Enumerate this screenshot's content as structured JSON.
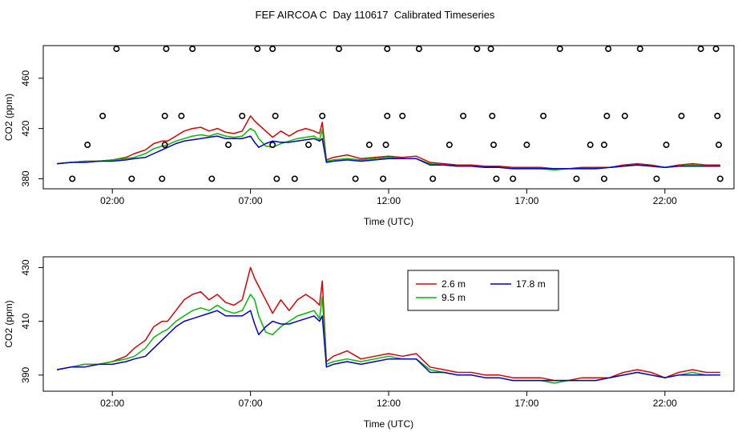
{
  "title": "FEF AIRCOA C  Day 110617  Calibrated Timeseries",
  "colors": {
    "s26": "#dd0000",
    "s95": "#00bb00",
    "s178": "#0000cc",
    "axis": "#000000"
  },
  "chart_data": [
    {
      "type": "scatter",
      "title": "",
      "xlabel": "Time (UTC)",
      "ylabel": "CO2 (ppm)",
      "xlim": [
        -0.5,
        24.5
      ],
      "ylim": [
        372,
        486
      ],
      "xticks": [
        {
          "v": 2,
          "label": "02:00"
        },
        {
          "v": 7,
          "label": "07:00"
        },
        {
          "v": 12,
          "label": "12:00"
        },
        {
          "v": 17,
          "label": "17:00"
        },
        {
          "v": 22,
          "label": "22:00"
        }
      ],
      "yticks": [
        {
          "v": 380,
          "label": "380"
        },
        {
          "v": 420,
          "label": "420"
        },
        {
          "v": 460,
          "label": "460"
        }
      ],
      "circles": [
        [
          0.55,
          380
        ],
        [
          1.1,
          407
        ],
        [
          1.65,
          430
        ],
        [
          2.15,
          489
        ],
        [
          2.7,
          380
        ],
        [
          3.8,
          380
        ],
        [
          3.9,
          430
        ],
        [
          3.95,
          489
        ],
        [
          3.9,
          407
        ],
        [
          4.5,
          430
        ],
        [
          4.9,
          489
        ],
        [
          5.6,
          380
        ],
        [
          6.2,
          407
        ],
        [
          6.7,
          430
        ],
        [
          7.25,
          489
        ],
        [
          7.8,
          489
        ],
        [
          7.9,
          430
        ],
        [
          7.8,
          407
        ],
        [
          7.95,
          380
        ],
        [
          8.6,
          380
        ],
        [
          9.1,
          407
        ],
        [
          9.6,
          430
        ],
        [
          10.2,
          489
        ],
        [
          10.8,
          380
        ],
        [
          11.3,
          407
        ],
        [
          11.8,
          380
        ],
        [
          11.9,
          407
        ],
        [
          11.95,
          430
        ],
        [
          11.95,
          489
        ],
        [
          12.5,
          430
        ],
        [
          13.1,
          489
        ],
        [
          13.6,
          380
        ],
        [
          14.2,
          407
        ],
        [
          14.7,
          430
        ],
        [
          15.2,
          489
        ],
        [
          15.7,
          489
        ],
        [
          15.75,
          430
        ],
        [
          15.8,
          407
        ],
        [
          15.9,
          380
        ],
        [
          16.5,
          380
        ],
        [
          17.0,
          407
        ],
        [
          17.6,
          430
        ],
        [
          18.2,
          489
        ],
        [
          18.8,
          380
        ],
        [
          19.3,
          407
        ],
        [
          19.8,
          380
        ],
        [
          19.8,
          407
        ],
        [
          19.9,
          430
        ],
        [
          19.95,
          489
        ],
        [
          20.55,
          430
        ],
        [
          21.1,
          489
        ],
        [
          21.7,
          380
        ],
        [
          22.05,
          407
        ],
        [
          22.6,
          430
        ],
        [
          23.3,
          489
        ],
        [
          23.85,
          489
        ],
        [
          23.9,
          430
        ],
        [
          23.95,
          407
        ],
        [
          24.0,
          380
        ]
      ],
      "series": [
        {
          "name": "2.6 m",
          "x": [
            0,
            0.5,
            1,
            1.5,
            2,
            2.5,
            2.8,
            3.2,
            3.5,
            3.8,
            4,
            4.3,
            4.6,
            4.9,
            5.2,
            5.5,
            5.8,
            6.1,
            6.4,
            6.7,
            7,
            7.15,
            7.3,
            7.55,
            7.8,
            8.1,
            8.4,
            8.7,
            9,
            9.3,
            9.5,
            9.6,
            9.75,
            10,
            10.5,
            11,
            11.5,
            12,
            12.5,
            13,
            13.5,
            14,
            14.5,
            15,
            15.5,
            16,
            16.5,
            17,
            17.5,
            18,
            18.5,
            19,
            19.5,
            20,
            20.5,
            21,
            21.5,
            22,
            22.5,
            23,
            23.5,
            24
          ],
          "values": [
            392,
            393,
            394,
            394,
            395,
            397,
            400,
            403,
            408,
            410,
            410,
            414,
            418,
            420,
            421,
            418,
            420,
            417,
            416,
            418,
            430,
            426,
            423,
            418,
            413,
            418,
            414,
            418,
            420,
            418,
            416,
            425,
            395,
            397,
            399,
            396,
            397,
            398,
            397,
            398,
            393,
            392,
            391,
            391,
            390,
            390,
            389,
            389,
            389,
            388,
            388,
            389,
            389,
            389,
            391,
            392,
            391,
            389,
            391,
            392,
            391,
            391
          ]
        },
        {
          "name": "9.5 m",
          "x": [
            0,
            0.5,
            1,
            1.5,
            2,
            2.5,
            2.8,
            3.2,
            3.5,
            3.8,
            4,
            4.3,
            4.6,
            4.9,
            5.2,
            5.5,
            5.8,
            6.1,
            6.4,
            6.7,
            7,
            7.15,
            7.3,
            7.55,
            7.8,
            8.1,
            8.4,
            8.7,
            9,
            9.3,
            9.5,
            9.6,
            9.75,
            10,
            10.5,
            11,
            11.5,
            12,
            12.5,
            13,
            13.5,
            14,
            14.5,
            15,
            15.5,
            16,
            16.5,
            17,
            17.5,
            18,
            18.5,
            19,
            19.5,
            20,
            20.5,
            21,
            21.5,
            22,
            22.5,
            23,
            23.5,
            24
          ],
          "values": [
            392,
            393,
            394,
            394,
            395,
            396,
            397,
            400,
            404,
            406,
            407,
            410,
            412,
            414,
            415,
            414,
            416,
            414,
            413,
            414,
            420,
            418,
            412,
            406,
            405,
            408,
            410,
            412,
            413,
            414,
            411,
            419,
            394,
            395,
            396,
            395,
            396,
            397,
            396,
            396,
            392,
            391,
            390,
            390,
            389,
            389,
            388,
            388,
            388,
            387,
            388,
            388,
            388,
            389,
            390,
            391,
            390,
            389,
            390,
            391,
            390,
            390
          ]
        },
        {
          "name": "17.8 m",
          "x": [
            0,
            0.5,
            1,
            1.5,
            2,
            2.5,
            2.8,
            3.2,
            3.5,
            3.8,
            4,
            4.3,
            4.6,
            4.9,
            5.2,
            5.5,
            5.8,
            6.1,
            6.4,
            6.7,
            7,
            7.15,
            7.3,
            7.55,
            7.8,
            8.1,
            8.4,
            8.7,
            9,
            9.3,
            9.5,
            9.6,
            9.75,
            10,
            10.5,
            11,
            11.5,
            12,
            12.5,
            13,
            13.5,
            14,
            14.5,
            15,
            15.5,
            16,
            16.5,
            17,
            17.5,
            18,
            18.5,
            19,
            19.5,
            20,
            20.5,
            21,
            21.5,
            22,
            22.5,
            23,
            23.5,
            24
          ],
          "values": [
            392,
            393,
            393,
            394,
            394,
            395,
            396,
            397,
            400,
            403,
            405,
            408,
            410,
            411,
            412,
            413,
            414,
            412,
            412,
            412,
            414,
            409,
            405,
            408,
            410,
            409,
            409,
            410,
            411,
            412,
            410,
            412,
            393,
            394,
            395,
            394,
            395,
            396,
            396,
            396,
            391,
            391,
            390,
            390,
            389,
            389,
            388,
            388,
            388,
            388,
            388,
            388,
            388,
            389,
            390,
            391,
            390,
            389,
            390,
            390,
            390,
            390
          ]
        }
      ]
    },
    {
      "type": "line",
      "title": "",
      "xlabel": "Time (UTC)",
      "ylabel": "CO2 (ppm)",
      "xlim": [
        -0.5,
        24.5
      ],
      "ylim": [
        384,
        434
      ],
      "xticks": [
        {
          "v": 2,
          "label": "02:00"
        },
        {
          "v": 7,
          "label": "07:00"
        },
        {
          "v": 12,
          "label": "12:00"
        },
        {
          "v": 17,
          "label": "17:00"
        },
        {
          "v": 22,
          "label": "22:00"
        }
      ],
      "yticks": [
        {
          "v": 390,
          "label": "390"
        },
        {
          "v": 410,
          "label": "410"
        },
        {
          "v": 430,
          "label": "430"
        }
      ],
      "legend": {
        "placement": "top-center",
        "entries": [
          "2.6 m",
          "17.8 m",
          "9.5 m"
        ]
      },
      "series": [
        {
          "name": "2.6 m",
          "x": [
            0,
            0.5,
            1,
            1.5,
            2,
            2.5,
            2.8,
            3.2,
            3.5,
            3.8,
            4,
            4.3,
            4.6,
            4.9,
            5.2,
            5.5,
            5.8,
            6.1,
            6.4,
            6.7,
            7,
            7.15,
            7.3,
            7.55,
            7.8,
            8.1,
            8.4,
            8.7,
            9,
            9.3,
            9.5,
            9.6,
            9.75,
            10,
            10.5,
            11,
            11.5,
            12,
            12.5,
            13,
            13.5,
            14,
            14.5,
            15,
            15.5,
            16,
            16.5,
            17,
            17.5,
            18,
            18.5,
            19,
            19.5,
            20,
            20.5,
            21,
            21.5,
            22,
            22.5,
            23,
            23.5,
            24
          ],
          "values": [
            392,
            393,
            394,
            394,
            395,
            397,
            400,
            403,
            408,
            410,
            410,
            414,
            418,
            420,
            421,
            418,
            420,
            417,
            416,
            418,
            430,
            426,
            423,
            418,
            413,
            418,
            414,
            418,
            420,
            418,
            416,
            425,
            395,
            397,
            399,
            396,
            397,
            398,
            397,
            398,
            393,
            392,
            391,
            391,
            390,
            390,
            389,
            389,
            389,
            388,
            388,
            389,
            389,
            389,
            391,
            392,
            391,
            389,
            391,
            392,
            391,
            391
          ]
        },
        {
          "name": "9.5 m",
          "x": [
            0,
            0.5,
            1,
            1.5,
            2,
            2.5,
            2.8,
            3.2,
            3.5,
            3.8,
            4,
            4.3,
            4.6,
            4.9,
            5.2,
            5.5,
            5.8,
            6.1,
            6.4,
            6.7,
            7,
            7.15,
            7.3,
            7.55,
            7.8,
            8.1,
            8.4,
            8.7,
            9,
            9.3,
            9.5,
            9.6,
            9.75,
            10,
            10.5,
            11,
            11.5,
            12,
            12.5,
            13,
            13.5,
            14,
            14.5,
            15,
            15.5,
            16,
            16.5,
            17,
            17.5,
            18,
            18.5,
            19,
            19.5,
            20,
            20.5,
            21,
            21.5,
            22,
            22.5,
            23,
            23.5,
            24
          ],
          "values": [
            392,
            393,
            394,
            394,
            395,
            396,
            397,
            400,
            404,
            406,
            407,
            410,
            412,
            414,
            415,
            414,
            416,
            414,
            413,
            414,
            420,
            418,
            412,
            406,
            405,
            408,
            410,
            412,
            413,
            414,
            411,
            419,
            394,
            395,
            396,
            395,
            396,
            397,
            396,
            396,
            392,
            391,
            390,
            390,
            389,
            389,
            388,
            388,
            388,
            387,
            388,
            388,
            388,
            389,
            390,
            391,
            390,
            389,
            390,
            391,
            390,
            390
          ]
        },
        {
          "name": "17.8 m",
          "x": [
            0,
            0.5,
            1,
            1.5,
            2,
            2.5,
            2.8,
            3.2,
            3.5,
            3.8,
            4,
            4.3,
            4.6,
            4.9,
            5.2,
            5.5,
            5.8,
            6.1,
            6.4,
            6.7,
            7,
            7.15,
            7.3,
            7.55,
            7.8,
            8.1,
            8.4,
            8.7,
            9,
            9.3,
            9.5,
            9.6,
            9.75,
            10,
            10.5,
            11,
            11.5,
            12,
            12.5,
            13,
            13.5,
            14,
            14.5,
            15,
            15.5,
            16,
            16.5,
            17,
            17.5,
            18,
            18.5,
            19,
            19.5,
            20,
            20.5,
            21,
            21.5,
            22,
            22.5,
            23,
            23.5,
            24
          ],
          "values": [
            392,
            393,
            393,
            394,
            394,
            395,
            396,
            397,
            400,
            403,
            405,
            408,
            410,
            411,
            412,
            413,
            414,
            412,
            412,
            412,
            414,
            409,
            405,
            408,
            410,
            409,
            409,
            410,
            411,
            412,
            410,
            412,
            393,
            394,
            395,
            394,
            395,
            396,
            396,
            396,
            391,
            391,
            390,
            390,
            389,
            389,
            388,
            388,
            388,
            388,
            388,
            388,
            388,
            389,
            390,
            391,
            390,
            389,
            390,
            390,
            390,
            390
          ]
        }
      ]
    }
  ]
}
